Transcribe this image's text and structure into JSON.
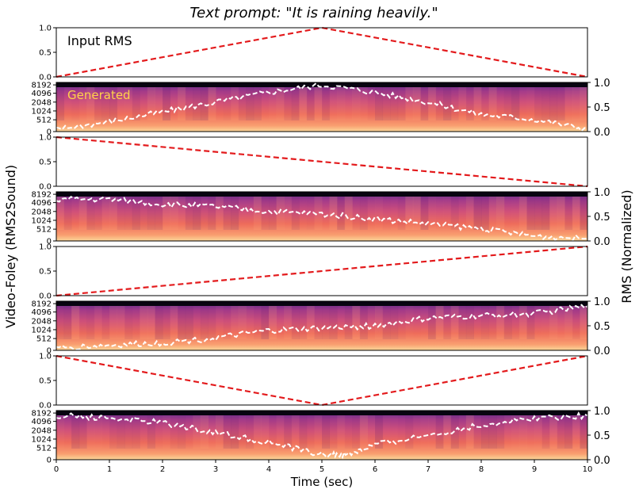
{
  "figure": {
    "title": "Text prompt: \"It is raining heavily.\"",
    "left_ylabel": "Video-Foley (RMS2Sound)",
    "right_ylabel": "RMS (Normalized)",
    "xlabel": "Time (sec)",
    "annotations": {
      "input": "Input RMS",
      "generated": "Generated"
    },
    "colors": {
      "input_line": "#e31a1c",
      "rms_curve": "#ffffff",
      "spectrogram_colormap": "magma"
    }
  },
  "chart_data": [
    {
      "type": "line",
      "role": "input-rms",
      "x": [
        0,
        5,
        10
      ],
      "y": [
        0,
        1,
        0
      ],
      "xlim": [
        0,
        10
      ],
      "ylim": [
        0,
        1
      ],
      "yticks": [
        "0.0",
        "0.5",
        "1.0"
      ],
      "style": "red dashed",
      "annotation": "Input RMS"
    },
    {
      "type": "heatmap",
      "role": "generated-spectrogram",
      "colormap": "magma",
      "freq_ticks": [
        "0",
        "512",
        "1024",
        "2048",
        "4096",
        "8192"
      ],
      "overlay": {
        "type": "line",
        "style": "white dashed",
        "x": [
          0,
          1,
          2,
          3,
          4,
          5,
          6,
          7,
          8,
          9,
          10
        ],
        "y": [
          0.05,
          0.2,
          0.4,
          0.6,
          0.8,
          0.95,
          0.8,
          0.6,
          0.35,
          0.25,
          0.05
        ]
      },
      "right_ylim": [
        0,
        1
      ],
      "right_yticks": [
        "0.0",
        "0.5",
        "1.0"
      ],
      "annotation": "Generated"
    },
    {
      "type": "line",
      "role": "input-rms",
      "x": [
        0,
        10
      ],
      "y": [
        1,
        0
      ],
      "xlim": [
        0,
        10
      ],
      "ylim": [
        0,
        1
      ],
      "yticks": [
        "0.0",
        "0.5",
        "1.0"
      ],
      "style": "red dashed"
    },
    {
      "type": "heatmap",
      "role": "generated-spectrogram",
      "colormap": "magma",
      "freq_ticks": [
        "0",
        "512",
        "1024",
        "2048",
        "4096",
        "8192"
      ],
      "overlay": {
        "type": "line",
        "style": "white dashed",
        "x": [
          0,
          1,
          2,
          3,
          4,
          5,
          6,
          7,
          8,
          9,
          10
        ],
        "y": [
          0.85,
          0.85,
          0.75,
          0.7,
          0.6,
          0.55,
          0.45,
          0.35,
          0.25,
          0.1,
          0.05
        ]
      },
      "right_ylim": [
        0,
        1
      ],
      "right_yticks": [
        "0.0",
        "0.5",
        "1.0"
      ]
    },
    {
      "type": "line",
      "role": "input-rms",
      "x": [
        0,
        10
      ],
      "y": [
        0,
        1
      ],
      "xlim": [
        0,
        10
      ],
      "ylim": [
        0,
        1
      ],
      "yticks": [
        "0.0",
        "0.5",
        "1.0"
      ],
      "style": "red dashed"
    },
    {
      "type": "heatmap",
      "role": "generated-spectrogram",
      "colormap": "magma",
      "freq_ticks": [
        "0",
        "512",
        "1024",
        "2048",
        "4096",
        "8192"
      ],
      "overlay": {
        "type": "line",
        "style": "white dashed",
        "x": [
          0,
          1,
          2,
          3,
          4,
          5,
          6,
          7,
          8,
          9,
          10
        ],
        "y": [
          0.05,
          0.1,
          0.15,
          0.25,
          0.4,
          0.45,
          0.5,
          0.65,
          0.7,
          0.75,
          0.9
        ]
      },
      "right_ylim": [
        0,
        1
      ],
      "right_yticks": [
        "0.0",
        "0.5",
        "1.0"
      ]
    },
    {
      "type": "line",
      "role": "input-rms",
      "x": [
        0,
        5,
        10
      ],
      "y": [
        1,
        0,
        1
      ],
      "xlim": [
        0,
        10
      ],
      "ylim": [
        0,
        1
      ],
      "yticks": [
        "0.0",
        "0.5",
        "1.0"
      ],
      "style": "red dashed"
    },
    {
      "type": "heatmap",
      "role": "generated-spectrogram",
      "colormap": "magma",
      "freq_ticks": [
        "0",
        "512",
        "1024",
        "2048",
        "4096",
        "8192"
      ],
      "overlay": {
        "type": "line",
        "style": "white dashed",
        "x": [
          0,
          1,
          2,
          3,
          4,
          5,
          5.5,
          6,
          7,
          8,
          9,
          10
        ],
        "y": [
          0.9,
          0.85,
          0.75,
          0.55,
          0.35,
          0.1,
          0.1,
          0.3,
          0.5,
          0.7,
          0.85,
          0.9
        ]
      },
      "right_ylim": [
        0,
        1
      ],
      "right_yticks": [
        "0.0",
        "0.5",
        "1.0"
      ],
      "xticks": [
        "0",
        "1",
        "2",
        "3",
        "4",
        "5",
        "6",
        "7",
        "8",
        "9",
        "10"
      ]
    }
  ]
}
